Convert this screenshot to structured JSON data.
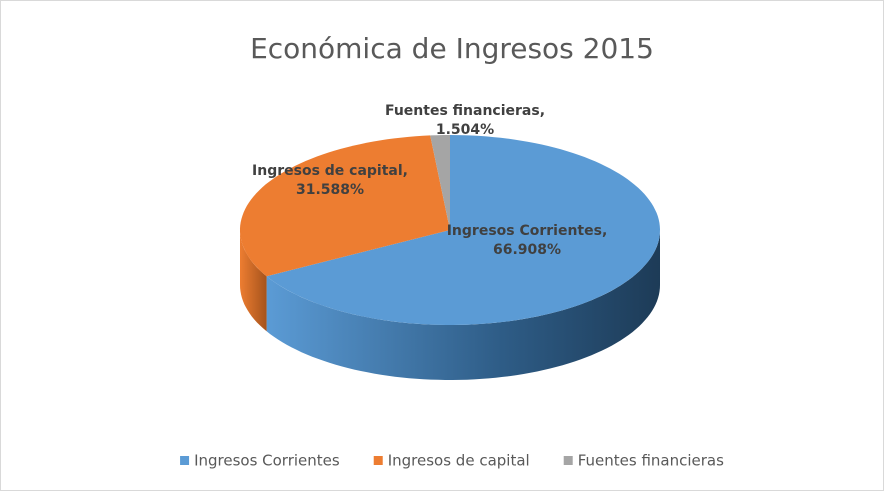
{
  "chart_data": {
    "type": "pie",
    "title": "Económica de Ingresos 2015",
    "categories": [
      "Ingresos Corrientes",
      "Ingresos de capital",
      "Fuentes financieras"
    ],
    "values": [
      66.908,
      31.588,
      1.504
    ],
    "value_labels": [
      "Ingresos Corrientes, 66.908%",
      "Ingresos de capital, 31.588%",
      "Fuentes financieras, 1.504%"
    ],
    "colors": [
      "#5b9bd5",
      "#ed7d31",
      "#a5a5a5"
    ],
    "legend": "bottom"
  }
}
